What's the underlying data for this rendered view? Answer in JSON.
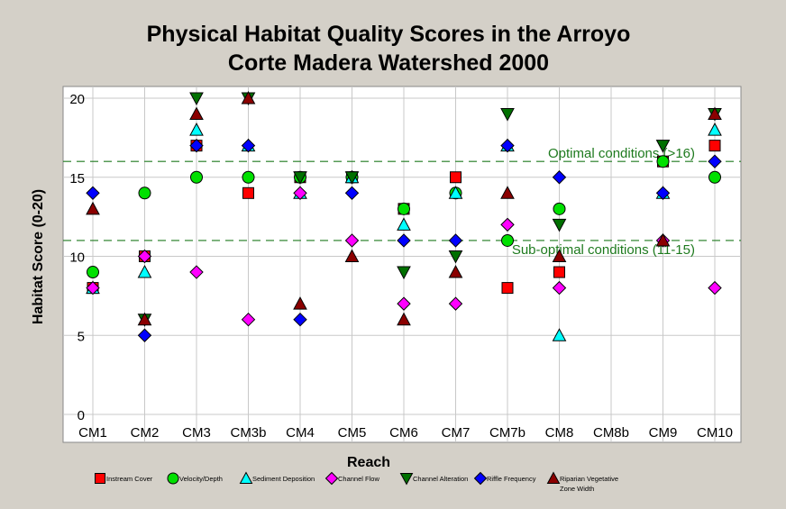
{
  "chart_data": {
    "type": "scatter",
    "title_lines": [
      "Physical Habitat Quality Scores in the Arroyo",
      "Corte Madera Watershed 2000"
    ],
    "xlabel": "Reach",
    "ylabel": "Habitat Score (0-20)",
    "categories": [
      "CM1",
      "CM2",
      "CM3",
      "CM3b",
      "CM4",
      "CM5",
      "CM6",
      "CM7",
      "CM7b",
      "CM8",
      "CM8b",
      "CM9",
      "CM10"
    ],
    "ylim": [
      0,
      20
    ],
    "yticks": [
      0,
      5,
      10,
      15,
      20
    ],
    "grid": true,
    "legend_position": "bottom",
    "reference_lines": [
      {
        "y": 16,
        "label": "Optimal conditions (>16)",
        "color": "#1e7a1e"
      },
      {
        "y": 11,
        "label": "Sub-optimal conditions (11-15)",
        "color": "#1e7a1e"
      }
    ],
    "series": [
      {
        "name": "Instream Cover",
        "marker": "square",
        "color": "#ff0000",
        "values": [
          8,
          10,
          17,
          14,
          15,
          15,
          13,
          15,
          8,
          9,
          null,
          16,
          17
        ]
      },
      {
        "name": "Velocity/Depth",
        "marker": "circle",
        "color": "#00e000",
        "values": [
          9,
          14,
          15,
          15,
          15,
          15,
          13,
          14,
          11,
          13,
          null,
          16,
          15
        ]
      },
      {
        "name": "Sediment Deposition",
        "marker": "triangle-up",
        "color": "#00ffff",
        "values": [
          8,
          9,
          18,
          17,
          14,
          15,
          12,
          14,
          17,
          5,
          null,
          14,
          18
        ]
      },
      {
        "name": "Channel Flow",
        "marker": "diamond",
        "color": "#ff00ff",
        "values": [
          8,
          10,
          9,
          6,
          14,
          11,
          7,
          7,
          12,
          8,
          null,
          11,
          8
        ]
      },
      {
        "name": "Channel Alteration",
        "marker": "triangle-down",
        "color": "#007000",
        "values": [
          null,
          6,
          20,
          20,
          15,
          15,
          9,
          10,
          19,
          12,
          null,
          17,
          19
        ]
      },
      {
        "name": "Riffle Frequency",
        "marker": "diamond",
        "color": "#0000ff",
        "values": [
          14,
          5,
          17,
          17,
          6,
          14,
          11,
          11,
          17,
          15,
          null,
          14,
          16
        ]
      },
      {
        "name": "Riparian Vegetative Zone Width",
        "marker": "triangle-up",
        "color": "#8b0000",
        "values": [
          13,
          6,
          19,
          20,
          7,
          10,
          6,
          9,
          14,
          10,
          null,
          11,
          19
        ]
      }
    ],
    "legend_labels": [
      [
        "Instream Cover"
      ],
      [
        "Velocity/Depth"
      ],
      [
        "Sediment Deposition"
      ],
      [
        "Channel Flow"
      ],
      [
        "Channel Alteration"
      ],
      [
        "Riffle Frequency"
      ],
      [
        "Riparian Vegetative",
        "Zone Width"
      ]
    ]
  }
}
